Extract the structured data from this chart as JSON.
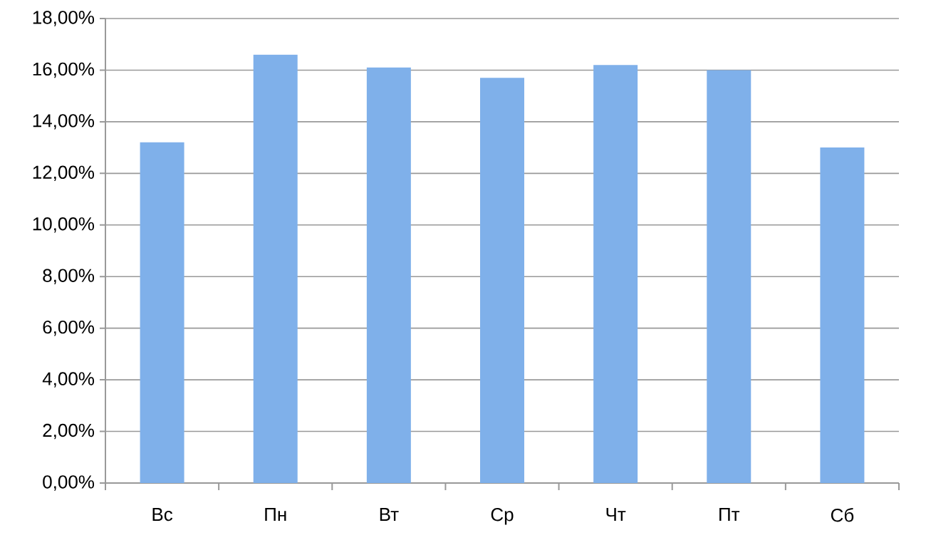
{
  "chart_data": {
    "type": "bar",
    "categories": [
      "Вс",
      "Пн",
      "Вт",
      "Ср",
      "Чт",
      "Пт",
      "Сб"
    ],
    "values": [
      13.2,
      16.6,
      16.1,
      15.7,
      16.2,
      16.0,
      13.0
    ],
    "color": "#7fb0ea",
    "ylim": [
      0,
      18
    ],
    "yticks": [
      {
        "value": 0,
        "label": "0,00%"
      },
      {
        "value": 2,
        "label": "2,00%"
      },
      {
        "value": 4,
        "label": "4,00%"
      },
      {
        "value": 6,
        "label": "6,00%"
      },
      {
        "value": 8,
        "label": "8,00%"
      },
      {
        "value": 10,
        "label": "10,00%"
      },
      {
        "value": 12,
        "label": "12,00%"
      },
      {
        "value": 14,
        "label": "14,00%"
      },
      {
        "value": 16,
        "label": "16,00%"
      },
      {
        "value": 18,
        "label": "18,00%"
      }
    ],
    "grid": "y"
  }
}
